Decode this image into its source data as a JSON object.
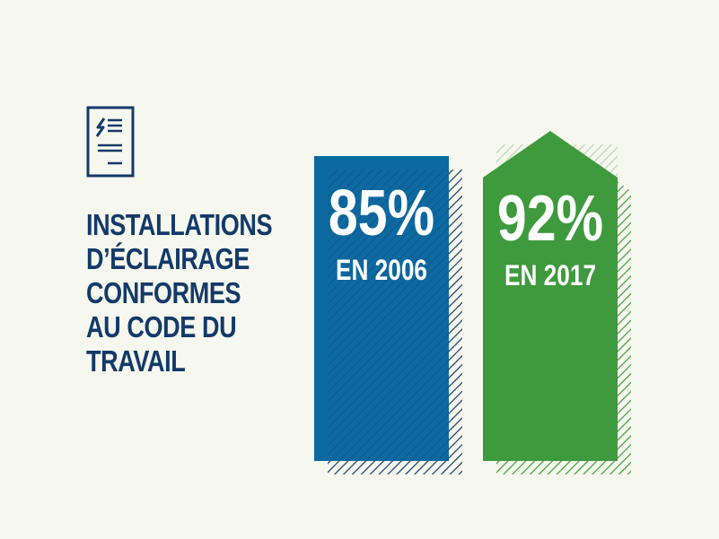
{
  "title_lines": [
    "INSTALLATIONS",
    "D’ÉCLAIRAGE",
    "CONFORMES",
    "AU CODE DU",
    "TRAVAIL"
  ],
  "icon": "document-lightning-icon",
  "colors": {
    "background": "#f6f7ee",
    "title": "#123a6a",
    "bar_2006": "#0c6aa1",
    "bar_2017": "#3e9a3c",
    "hatch_2006": "#123a6a",
    "hatch_2017": "#3e9a3c",
    "label": "#ffffff"
  },
  "chart_data": {
    "type": "bar",
    "categories": [
      "EN 2006",
      "EN 2017"
    ],
    "values": [
      85,
      92
    ],
    "value_labels": [
      "85%",
      "92%"
    ],
    "unit": "%",
    "ylim": [
      0,
      100
    ],
    "bar_shapes": [
      "rectangle",
      "arrow"
    ],
    "grid": false,
    "axes_shown": false
  }
}
